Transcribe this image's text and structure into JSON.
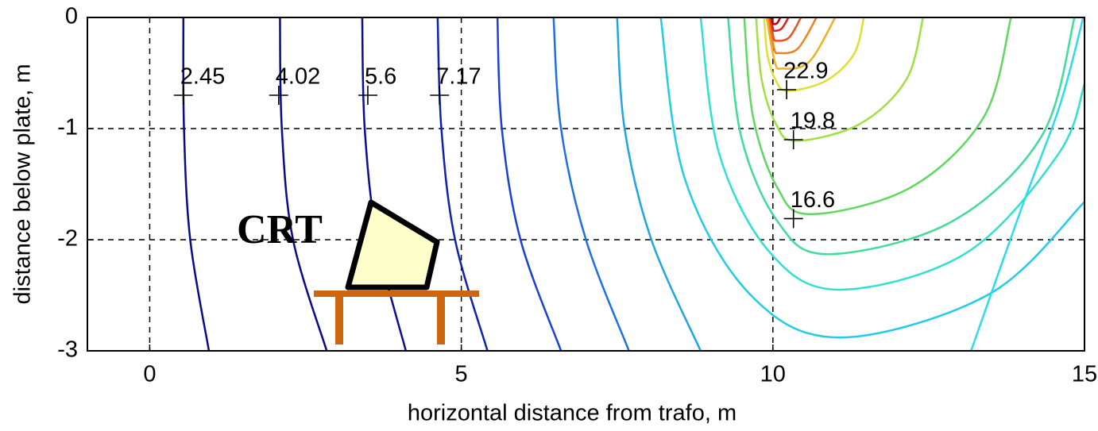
{
  "chart_data": {
    "type": "contour",
    "xlabel": "horizontal distance from trafo, m",
    "ylabel": "distance below plate, m",
    "xlim": [
      -1,
      15
    ],
    "ylim": [
      -3,
      0
    ],
    "xticks": [
      0,
      5,
      10,
      15
    ],
    "yticks": [
      0,
      -1,
      -2,
      -3
    ],
    "grid": true,
    "annotation": "CRT",
    "contours": [
      {
        "color": "#0a0a8c",
        "x": [
          0.54,
          0.55,
          0.65,
          0.95
        ],
        "y": [
          0,
          -1,
          -2,
          -3
        ]
      },
      {
        "color": "#0a0a8c",
        "x": [
          2.09,
          2.12,
          2.3,
          2.84
        ],
        "y": [
          0,
          -1,
          -2,
          -3
        ]
      },
      {
        "color": "#0c0c9a",
        "x": [
          3.41,
          3.45,
          3.65,
          4.11
        ],
        "y": [
          0,
          -1,
          -2,
          -3
        ]
      },
      {
        "color": "#1020b0",
        "x": [
          4.62,
          4.68,
          4.9,
          5.42
        ],
        "y": [
          0,
          -1,
          -2,
          -3
        ]
      },
      {
        "color": "#1a40d8",
        "x": [
          5.58,
          5.65,
          5.95,
          6.6
        ],
        "y": [
          0,
          -1,
          -2,
          -3
        ]
      },
      {
        "color": "#1e70e0",
        "x": [
          6.48,
          6.6,
          7.0,
          7.69
        ],
        "y": [
          0,
          -1,
          -2,
          -3
        ]
      },
      {
        "color": "#20a4e8",
        "x": [
          7.5,
          7.62,
          8.05,
          8.84
        ],
        "y": [
          0,
          -1,
          -2,
          -3
        ]
      },
      {
        "color": "#22cce8",
        "x": [
          8.2,
          8.58,
          9.63,
          11.07,
          13.47,
          15
        ],
        "y": [
          0,
          -1.44,
          -2.49,
          -2.88,
          -2.49,
          -1.66
        ]
      },
      {
        "color": "#2cdce8",
        "x": [
          14.98,
          14.6,
          14.0,
          13.18
        ],
        "y": [
          0,
          -0.8,
          -1.7,
          -3
        ]
      },
      {
        "color": "#30e0d0",
        "x": [
          8.84,
          9.14,
          9.96,
          11.07,
          13.1,
          14.58,
          15
        ],
        "y": [
          0,
          -1.23,
          -2.12,
          -2.45,
          -2.12,
          -1.23,
          -0.6
        ]
      },
      {
        "color": "#40dc98",
        "x": [
          9.28,
          9.49,
          10.08,
          10.88,
          12.86,
          14.31,
          14.84
        ],
        "y": [
          0,
          -1.07,
          -1.84,
          -2.13,
          -1.84,
          -1.07,
          0
        ]
      },
      {
        "color": "#60d860",
        "x": [
          9.54,
          9.68,
          10.07,
          10.6,
          12.21,
          13.39,
          13.82
        ],
        "y": [
          0,
          -0.89,
          -1.53,
          -1.77,
          -1.53,
          -0.89,
          0
        ]
      },
      {
        "color": "#a0e040",
        "x": [
          9.73,
          9.82,
          10.05,
          10.37,
          11.39,
          12.14,
          12.41
        ],
        "y": [
          0,
          -0.56,
          -0.96,
          -1.11,
          -0.96,
          -0.56,
          0
        ]
      },
      {
        "color": "#e0e030",
        "x": [
          9.86,
          9.91,
          10.05,
          10.24,
          10.85,
          11.3,
          11.46
        ],
        "y": [
          0,
          -0.33,
          -0.57,
          -0.66,
          -0.57,
          -0.33,
          0
        ]
      },
      {
        "color": "#f0b020",
        "x": [
          9.9,
          10.03,
          10.15,
          10.58,
          11.0
        ],
        "y": [
          0,
          -0.4,
          -0.46,
          -0.4,
          0
        ]
      },
      {
        "color": "#f08020",
        "x": [
          9.93,
          10.02,
          10.1,
          10.4,
          10.7
        ],
        "y": [
          0,
          -0.28,
          -0.32,
          -0.28,
          0
        ]
      },
      {
        "color": "#f05020",
        "x": [
          9.95,
          10.01,
          10.06,
          10.26,
          10.45
        ],
        "y": [
          0,
          -0.18,
          -0.21,
          -0.18,
          0
        ]
      },
      {
        "color": "#e02020",
        "x": [
          9.97,
          10.0,
          10.03,
          10.14,
          10.25
        ],
        "y": [
          0,
          -0.1,
          -0.12,
          -0.1,
          0
        ]
      },
      {
        "color": "#c00000",
        "x": [
          9.98,
          10.0,
          10.02,
          10.07,
          10.12
        ],
        "y": [
          0,
          -0.05,
          -0.06,
          -0.05,
          0
        ]
      }
    ],
    "contour_labels": [
      {
        "level": 2.45,
        "x": 0.54,
        "y": -0.7
      },
      {
        "level": 4.02,
        "x": 2.07,
        "y": -0.7
      },
      {
        "level": 5.6,
        "x": 3.5,
        "y": -0.7
      },
      {
        "level": 7.17,
        "x": 4.65,
        "y": -0.7
      },
      {
        "level": 22.9,
        "x": 10.22,
        "y": -0.65
      },
      {
        "level": 19.8,
        "x": 10.33,
        "y": -1.1
      },
      {
        "level": 16.6,
        "x": 10.33,
        "y": -1.81
      }
    ]
  }
}
